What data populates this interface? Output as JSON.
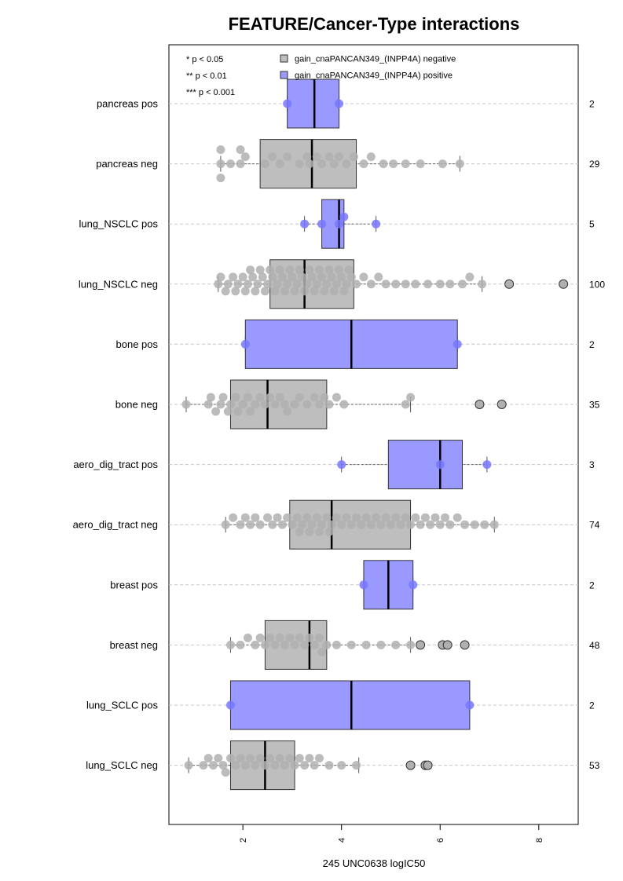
{
  "chart_data": {
    "type": "boxplot",
    "title": "FEATURE/Cancer-Type interactions",
    "xlabel": "245 UNC0638 logIC50",
    "xlim": [
      0.5,
      8.8
    ],
    "xticks": [
      2,
      4,
      6,
      8
    ],
    "grid": "horizontal dashed",
    "significance_legend": [
      "* p < 0.05",
      "** p < 0.01",
      "*** p < 0.001"
    ],
    "series": [
      {
        "name": "gain_cnaPANCAN349_(INPP4A) negative",
        "color": "#bebebe"
      },
      {
        "name": "gain_cnaPANCAN349_(INPP4A) positive",
        "color": "#9999ff"
      }
    ],
    "groups": [
      {
        "label": "pancreas pos",
        "status": "positive",
        "n": "2",
        "box": [
          2.9,
          3.45,
          3.95
        ],
        "whiskers": [
          2.9,
          3.95
        ],
        "points": [
          2.9,
          3.95
        ],
        "outliers": []
      },
      {
        "label": "pancreas neg",
        "status": "negative",
        "n": "29",
        "box": [
          2.35,
          3.4,
          4.3
        ],
        "whiskers": [
          1.55,
          6.4
        ],
        "points": [
          1.55,
          1.55,
          1.55,
          1.75,
          1.95,
          1.95,
          2.05,
          2.45,
          2.6,
          2.75,
          2.9,
          3.15,
          3.3,
          3.35,
          3.5,
          3.6,
          3.75,
          3.85,
          3.95,
          4.1,
          4.25,
          4.45,
          4.6,
          4.85,
          5.05,
          5.3,
          5.6,
          6.05,
          6.4
        ],
        "outliers": []
      },
      {
        "label": "lung_NSCLC pos",
        "status": "positive",
        "n": "5",
        "box": [
          3.6,
          3.95,
          4.05
        ],
        "whiskers": [
          3.25,
          4.7
        ],
        "points": [
          3.25,
          3.6,
          3.95,
          4.05,
          4.7
        ],
        "outliers": []
      },
      {
        "label": "lung_NSCLC neg",
        "status": "negative",
        "n": "100",
        "box": [
          2.55,
          3.25,
          4.25
        ],
        "whiskers": [
          1.5,
          6.85
        ],
        "points": [
          1.5,
          1.55,
          1.65,
          1.7,
          1.8,
          1.85,
          1.9,
          2.0,
          2.05,
          2.1,
          2.15,
          2.2,
          2.25,
          2.3,
          2.35,
          2.4,
          2.45,
          2.5,
          2.55,
          2.6,
          2.65,
          2.7,
          2.75,
          2.8,
          2.85,
          2.9,
          2.95,
          3.0,
          3.05,
          3.1,
          3.15,
          3.2,
          3.25,
          3.3,
          3.35,
          3.4,
          3.45,
          3.5,
          3.55,
          3.6,
          3.65,
          3.7,
          3.75,
          3.8,
          3.85,
          3.9,
          3.95,
          4.0,
          4.05,
          4.1,
          4.15,
          4.2,
          4.3,
          4.45,
          4.6,
          4.75,
          4.9,
          5.1,
          5.3,
          5.5,
          5.75,
          6.0,
          6.2,
          6.45,
          6.6,
          6.85
        ],
        "outliers": [
          7.4,
          8.5
        ]
      },
      {
        "label": "bone pos",
        "status": "positive",
        "n": "2",
        "box": [
          2.05,
          4.2,
          6.35
        ],
        "whiskers": [
          2.05,
          6.35
        ],
        "points": [
          2.05,
          6.35
        ],
        "outliers": []
      },
      {
        "label": "bone neg",
        "status": "negative",
        "n": "35",
        "box": [
          1.75,
          2.5,
          3.7
        ],
        "whiskers": [
          0.85,
          5.4
        ],
        "points": [
          0.85,
          1.3,
          1.35,
          1.45,
          1.55,
          1.6,
          1.7,
          1.75,
          1.85,
          1.9,
          2.0,
          2.1,
          2.15,
          2.25,
          2.35,
          2.45,
          2.55,
          2.65,
          2.75,
          2.85,
          2.9,
          3.05,
          3.15,
          3.3,
          3.45,
          3.55,
          3.65,
          3.75,
          3.9,
          4.05,
          5.3,
          5.4
        ],
        "outliers": [
          6.8,
          7.25
        ]
      },
      {
        "label": "aero_dig_tract pos",
        "status": "positive",
        "n": "3",
        "box": [
          4.95,
          6.0,
          6.45
        ],
        "whiskers": [
          4.0,
          6.95
        ],
        "points": [
          4.0,
          6.0,
          6.95
        ],
        "outliers": []
      },
      {
        "label": "aero_dig_tract neg",
        "status": "negative",
        "n": "74",
        "box": [
          2.95,
          3.8,
          5.4
        ],
        "whiskers": [
          1.65,
          7.1
        ],
        "points": [
          1.65,
          1.8,
          1.95,
          2.05,
          2.15,
          2.25,
          2.35,
          2.5,
          2.6,
          2.7,
          2.8,
          2.9,
          3.0,
          3.1,
          3.15,
          3.2,
          3.3,
          3.35,
          3.4,
          3.5,
          3.55,
          3.6,
          3.7,
          3.75,
          3.8,
          3.9,
          4.0,
          4.1,
          4.2,
          4.3,
          4.4,
          4.5,
          4.6,
          4.7,
          4.8,
          4.9,
          5.0,
          5.1,
          5.2,
          5.3,
          5.4,
          5.5,
          5.6,
          5.7,
          5.8,
          5.9,
          6.0,
          6.1,
          6.2,
          6.35,
          6.5,
          6.7,
          6.9,
          7.1
        ],
        "outliers": []
      },
      {
        "label": "breast pos",
        "status": "positive",
        "n": "2",
        "box": [
          4.45,
          4.95,
          5.45
        ],
        "whiskers": [
          4.45,
          5.45
        ],
        "points": [
          4.45,
          5.45
        ],
        "outliers": []
      },
      {
        "label": "breast neg",
        "status": "negative",
        "n": "48",
        "box": [
          2.45,
          3.35,
          3.7
        ],
        "whiskers": [
          1.75,
          5.4
        ],
        "points": [
          1.75,
          1.95,
          2.1,
          2.25,
          2.35,
          2.45,
          2.55,
          2.65,
          2.75,
          2.85,
          2.95,
          3.05,
          3.15,
          3.25,
          3.35,
          3.45,
          3.55,
          3.6,
          3.7,
          3.9,
          4.2,
          4.5,
          4.8,
          5.1,
          5.4,
          5.6,
          6.15
        ],
        "outliers": [
          5.6,
          6.05,
          6.15,
          6.5
        ]
      },
      {
        "label": "lung_SCLC pos",
        "status": "positive",
        "n": "2",
        "box": [
          1.75,
          4.2,
          6.6
        ],
        "whiskers": [
          1.75,
          6.6
        ],
        "points": [
          1.75,
          6.6
        ],
        "outliers": []
      },
      {
        "label": "lung_SCLC neg",
        "status": "negative",
        "n": "53",
        "box": [
          1.75,
          2.45,
          3.05
        ],
        "whiskers": [
          0.9,
          4.35
        ],
        "points": [
          0.9,
          1.2,
          1.3,
          1.4,
          1.5,
          1.6,
          1.65,
          1.75,
          1.85,
          1.95,
          2.05,
          2.15,
          2.25,
          2.35,
          2.45,
          2.55,
          2.65,
          2.75,
          2.85,
          2.95,
          3.05,
          3.15,
          3.25,
          3.35,
          3.45,
          3.55,
          3.75,
          4.0,
          4.3
        ],
        "outliers": [
          5.4,
          5.7,
          5.75
        ]
      }
    ]
  }
}
